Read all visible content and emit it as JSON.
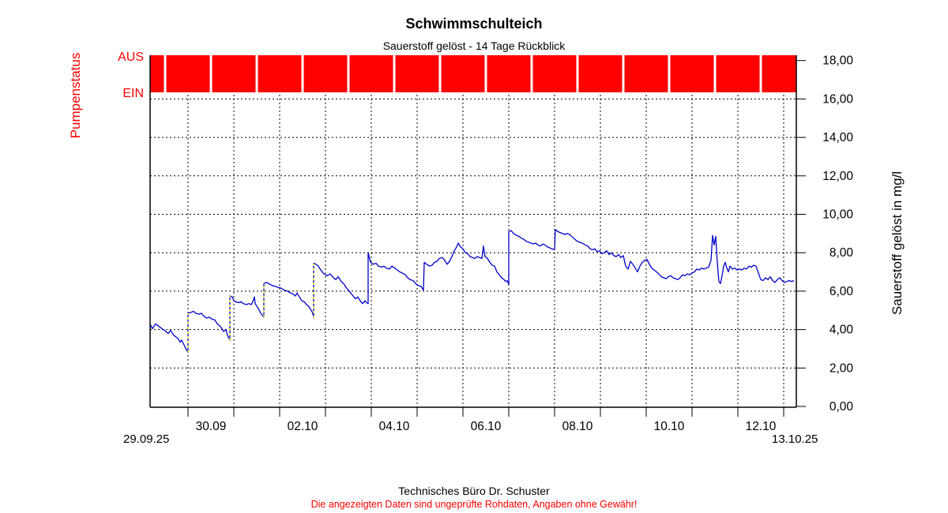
{
  "chart_data": {
    "type": "line",
    "title": "Schwimmschulteich",
    "subtitle": "Sauerstoff gelöst - 14 Tage Rückblick",
    "ylabel": "Sauerstoff gelöst in mg/l",
    "ylim": [
      0,
      18
    ],
    "y_tick_step": 2,
    "y_tick_labels": [
      "0,00",
      "2,00",
      "4,00",
      "6,00",
      "8,00",
      "10,00",
      "12,00",
      "14,00",
      "16,00",
      "18,00"
    ],
    "x_unit": "days since 29.09.25 00:00",
    "x_range_days": [
      0.17,
      14.28
    ],
    "x_start_label": "29.09.25",
    "x_end_label": "13.10.25",
    "x_day_tick_positions_days": [
      1,
      2,
      3,
      4,
      5,
      6,
      7,
      8,
      9,
      10,
      11,
      12,
      13,
      14
    ],
    "x_major_labels": [
      "30.09",
      "02.10",
      "04.10",
      "06.10",
      "08.10",
      "10.10",
      "12.10"
    ],
    "x_major_label_positions_days": [
      1.5,
      3.5,
      5.5,
      7.5,
      9.5,
      11.5,
      13.5
    ],
    "grid": "dashed",
    "pump_status": {
      "label": "Pumpenstatus",
      "off_label": "AUS",
      "on_label": "EIN",
      "bar_color": "#ff0000",
      "state": "AUS for entire range with brief daily EIN pulses",
      "ein_pulse_days": [
        0.5,
        1.5,
        2.5,
        3.5,
        4.5,
        5.5,
        6.5,
        7.5,
        8.5,
        9.5,
        10.5,
        11.5,
        12.5,
        13.5
      ]
    },
    "jump_markers": {
      "color": "#ffff00",
      "items": [
        [
          1.0,
          2.8,
          4.85
        ],
        [
          1.914,
          3.45,
          5.75
        ],
        [
          2.655,
          4.65,
          6.4
        ],
        [
          3.741,
          4.6,
          7.45
        ]
      ]
    },
    "series": [
      {
        "name": "Sauerstoff gelöst",
        "color": "#0000cc",
        "points": [
          [
            0.172,
            4.28
          ],
          [
            0.224,
            4.05
          ],
          [
            0.293,
            4.3
          ],
          [
            0.345,
            4.2
          ],
          [
            0.431,
            4.05
          ],
          [
            0.517,
            3.9
          ],
          [
            0.569,
            3.8
          ],
          [
            0.621,
            3.95
          ],
          [
            0.69,
            3.7
          ],
          [
            0.776,
            3.55
          ],
          [
            0.828,
            3.35
          ],
          [
            0.862,
            3.45
          ],
          [
            0.914,
            3.2
          ],
          [
            0.966,
            2.95
          ],
          [
            1.0,
            2.8
          ],
          [
            1.0,
            4.85
          ],
          [
            1.069,
            4.9
          ],
          [
            1.121,
            4.95
          ],
          [
            1.172,
            4.85
          ],
          [
            1.241,
            4.8
          ],
          [
            1.293,
            4.85
          ],
          [
            1.345,
            4.7
          ],
          [
            1.414,
            4.6
          ],
          [
            1.466,
            4.65
          ],
          [
            1.517,
            4.55
          ],
          [
            1.586,
            4.5
          ],
          [
            1.638,
            4.3
          ],
          [
            1.69,
            4.2
          ],
          [
            1.724,
            4.1
          ],
          [
            1.776,
            3.9
          ],
          [
            1.828,
            4.0
          ],
          [
            1.862,
            3.7
          ],
          [
            1.914,
            3.45
          ],
          [
            1.914,
            5.75
          ],
          [
            1.966,
            5.7
          ],
          [
            2.0,
            5.5
          ],
          [
            2.034,
            5.45
          ],
          [
            2.103,
            5.4
          ],
          [
            2.155,
            5.45
          ],
          [
            2.207,
            5.35
          ],
          [
            2.276,
            5.3
          ],
          [
            2.328,
            5.35
          ],
          [
            2.379,
            5.3
          ],
          [
            2.414,
            5.45
          ],
          [
            2.448,
            5.7
          ],
          [
            2.466,
            5.35
          ],
          [
            2.534,
            5.1
          ],
          [
            2.586,
            4.85
          ],
          [
            2.638,
            4.7
          ],
          [
            2.655,
            4.65
          ],
          [
            2.655,
            6.4
          ],
          [
            2.707,
            6.45
          ],
          [
            2.759,
            6.4
          ],
          [
            2.828,
            6.3
          ],
          [
            2.897,
            6.25
          ],
          [
            2.966,
            6.2
          ],
          [
            3.034,
            6.15
          ],
          [
            3.103,
            6.05
          ],
          [
            3.172,
            6.0
          ],
          [
            3.241,
            5.9
          ],
          [
            3.293,
            5.85
          ],
          [
            3.345,
            5.75
          ],
          [
            3.379,
            5.9
          ],
          [
            3.431,
            5.7
          ],
          [
            3.483,
            5.5
          ],
          [
            3.534,
            5.45
          ],
          [
            3.586,
            5.3
          ],
          [
            3.638,
            5.2
          ],
          [
            3.69,
            5.0
          ],
          [
            3.724,
            4.85
          ],
          [
            3.741,
            4.6
          ],
          [
            3.741,
            7.45
          ],
          [
            3.793,
            7.4
          ],
          [
            3.845,
            7.3
          ],
          [
            3.897,
            7.1
          ],
          [
            3.966,
            6.9
          ],
          [
            4.034,
            6.8
          ],
          [
            4.103,
            6.9
          ],
          [
            4.172,
            6.7
          ],
          [
            4.224,
            6.6
          ],
          [
            4.276,
            6.75
          ],
          [
            4.345,
            6.5
          ],
          [
            4.397,
            6.4
          ],
          [
            4.448,
            6.2
          ],
          [
            4.5,
            6.05
          ],
          [
            4.552,
            5.9
          ],
          [
            4.603,
            5.75
          ],
          [
            4.655,
            5.6
          ],
          [
            4.707,
            5.7
          ],
          [
            4.759,
            5.5
          ],
          [
            4.81,
            5.35
          ],
          [
            4.862,
            5.5
          ],
          [
            4.897,
            5.4
          ],
          [
            4.931,
            5.35
          ],
          [
            4.931,
            8.0
          ],
          [
            4.983,
            7.5
          ],
          [
            5.034,
            7.4
          ],
          [
            5.103,
            7.45
          ],
          [
            5.155,
            7.3
          ],
          [
            5.224,
            7.25
          ],
          [
            5.276,
            7.3
          ],
          [
            5.328,
            7.2
          ],
          [
            5.397,
            7.15
          ],
          [
            5.448,
            7.3
          ],
          [
            5.517,
            7.2
          ],
          [
            5.569,
            7.1
          ],
          [
            5.621,
            7.0
          ],
          [
            5.672,
            6.95
          ],
          [
            5.741,
            6.85
          ],
          [
            5.793,
            6.7
          ],
          [
            5.845,
            6.6
          ],
          [
            5.914,
            6.55
          ],
          [
            5.966,
            6.4
          ],
          [
            6.017,
            6.3
          ],
          [
            6.086,
            6.25
          ],
          [
            6.138,
            6.05
          ],
          [
            6.155,
            7.5
          ],
          [
            6.207,
            7.4
          ],
          [
            6.276,
            7.3
          ],
          [
            6.328,
            7.35
          ],
          [
            6.379,
            7.5
          ],
          [
            6.431,
            7.55
          ],
          [
            6.483,
            7.7
          ],
          [
            6.552,
            7.75
          ],
          [
            6.603,
            7.6
          ],
          [
            6.655,
            7.4
          ],
          [
            6.707,
            7.55
          ],
          [
            6.759,
            7.8
          ],
          [
            6.81,
            8.1
          ],
          [
            6.862,
            8.3
          ],
          [
            6.897,
            8.5
          ],
          [
            6.948,
            8.3
          ],
          [
            7.0,
            8.2
          ],
          [
            7.052,
            8.0
          ],
          [
            7.103,
            7.95
          ],
          [
            7.155,
            7.8
          ],
          [
            7.207,
            7.75
          ],
          [
            7.259,
            7.7
          ],
          [
            7.31,
            7.8
          ],
          [
            7.362,
            7.75
          ],
          [
            7.414,
            7.7
          ],
          [
            7.448,
            8.35
          ],
          [
            7.483,
            7.8
          ],
          [
            7.534,
            7.7
          ],
          [
            7.586,
            7.5
          ],
          [
            7.638,
            7.35
          ],
          [
            7.69,
            7.3
          ],
          [
            7.741,
            7.0
          ],
          [
            7.793,
            6.85
          ],
          [
            7.845,
            6.7
          ],
          [
            7.897,
            6.6
          ],
          [
            7.931,
            6.5
          ],
          [
            7.966,
            6.55
          ],
          [
            8.0,
            6.35
          ],
          [
            8.0,
            9.1
          ],
          [
            8.052,
            9.15
          ],
          [
            8.103,
            9.0
          ],
          [
            8.172,
            8.9
          ],
          [
            8.224,
            8.85
          ],
          [
            8.276,
            8.75
          ],
          [
            8.328,
            8.7
          ],
          [
            8.379,
            8.6
          ],
          [
            8.431,
            8.55
          ],
          [
            8.483,
            8.5
          ],
          [
            8.534,
            8.45
          ],
          [
            8.586,
            8.5
          ],
          [
            8.638,
            8.4
          ],
          [
            8.69,
            8.35
          ],
          [
            8.741,
            8.45
          ],
          [
            8.793,
            8.4
          ],
          [
            8.845,
            8.3
          ],
          [
            8.897,
            8.25
          ],
          [
            8.948,
            8.2
          ],
          [
            9.0,
            8.15
          ],
          [
            9.017,
            9.2
          ],
          [
            9.069,
            9.1
          ],
          [
            9.121,
            9.05
          ],
          [
            9.172,
            9.0
          ],
          [
            9.224,
            8.95
          ],
          [
            9.276,
            9.0
          ],
          [
            9.328,
            8.95
          ],
          [
            9.397,
            8.8
          ],
          [
            9.466,
            8.65
          ],
          [
            9.534,
            8.55
          ],
          [
            9.603,
            8.5
          ],
          [
            9.672,
            8.4
          ],
          [
            9.724,
            8.35
          ],
          [
            9.776,
            8.2
          ],
          [
            9.828,
            8.15
          ],
          [
            9.879,
            8.2
          ],
          [
            9.931,
            8.05
          ],
          [
            9.983,
            8.1
          ],
          [
            10.034,
            7.95
          ],
          [
            10.086,
            8.0
          ],
          [
            10.138,
            8.1
          ],
          [
            10.19,
            7.9
          ],
          [
            10.241,
            8.0
          ],
          [
            10.293,
            7.85
          ],
          [
            10.345,
            7.8
          ],
          [
            10.397,
            7.9
          ],
          [
            10.448,
            7.75
          ],
          [
            10.5,
            7.85
          ],
          [
            10.552,
            7.3
          ],
          [
            10.603,
            7.15
          ],
          [
            10.655,
            7.55
          ],
          [
            10.707,
            7.4
          ],
          [
            10.759,
            7.2
          ],
          [
            10.81,
            7.0
          ],
          [
            10.862,
            7.3
          ],
          [
            10.914,
            7.5
          ],
          [
            10.966,
            7.6
          ],
          [
            11.017,
            7.65
          ],
          [
            11.069,
            7.4
          ],
          [
            11.121,
            7.2
          ],
          [
            11.172,
            7.1
          ],
          [
            11.224,
            7.0
          ],
          [
            11.276,
            6.9
          ],
          [
            11.328,
            6.75
          ],
          [
            11.379,
            6.7
          ],
          [
            11.431,
            6.65
          ],
          [
            11.483,
            6.75
          ],
          [
            11.534,
            6.8
          ],
          [
            11.586,
            6.7
          ],
          [
            11.638,
            6.65
          ],
          [
            11.69,
            6.6
          ],
          [
            11.741,
            6.7
          ],
          [
            11.793,
            6.85
          ],
          [
            11.845,
            6.8
          ],
          [
            11.897,
            6.9
          ],
          [
            11.948,
            6.85
          ],
          [
            12.0,
            6.95
          ],
          [
            12.052,
            7.0
          ],
          [
            12.103,
            7.15
          ],
          [
            12.155,
            7.1
          ],
          [
            12.207,
            7.2
          ],
          [
            12.259,
            7.15
          ],
          [
            12.31,
            7.2
          ],
          [
            12.362,
            7.25
          ],
          [
            12.414,
            7.6
          ],
          [
            12.448,
            8.9
          ],
          [
            12.483,
            8.4
          ],
          [
            12.517,
            8.85
          ],
          [
            12.552,
            7.5
          ],
          [
            12.586,
            6.5
          ],
          [
            12.621,
            6.4
          ],
          [
            12.655,
            6.8
          ],
          [
            12.69,
            7.3
          ],
          [
            12.724,
            7.5
          ],
          [
            12.759,
            7.2
          ],
          [
            12.793,
            7.0
          ],
          [
            12.828,
            7.3
          ],
          [
            12.879,
            7.15
          ],
          [
            12.931,
            7.2
          ],
          [
            12.983,
            7.1
          ],
          [
            13.034,
            7.15
          ],
          [
            13.086,
            7.1
          ],
          [
            13.138,
            7.2
          ],
          [
            13.19,
            7.15
          ],
          [
            13.241,
            7.3
          ],
          [
            13.293,
            7.25
          ],
          [
            13.345,
            7.35
          ],
          [
            13.397,
            7.3
          ],
          [
            13.448,
            6.95
          ],
          [
            13.5,
            6.6
          ],
          [
            13.552,
            6.55
          ],
          [
            13.603,
            6.7
          ],
          [
            13.655,
            6.6
          ],
          [
            13.707,
            6.75
          ],
          [
            13.759,
            6.55
          ],
          [
            13.81,
            6.45
          ],
          [
            13.862,
            6.6
          ],
          [
            13.914,
            6.7
          ],
          [
            13.966,
            6.55
          ],
          [
            14.017,
            6.45
          ],
          [
            14.069,
            6.5
          ],
          [
            14.121,
            6.55
          ],
          [
            14.172,
            6.5
          ],
          [
            14.224,
            6.55
          ]
        ]
      }
    ]
  },
  "footer": {
    "line1": "Technisches Büro Dr. Schuster",
    "line2": "Die angezeigten Daten sind ungeprüfte Rohdaten, Angaben ohne Gewähr!"
  }
}
